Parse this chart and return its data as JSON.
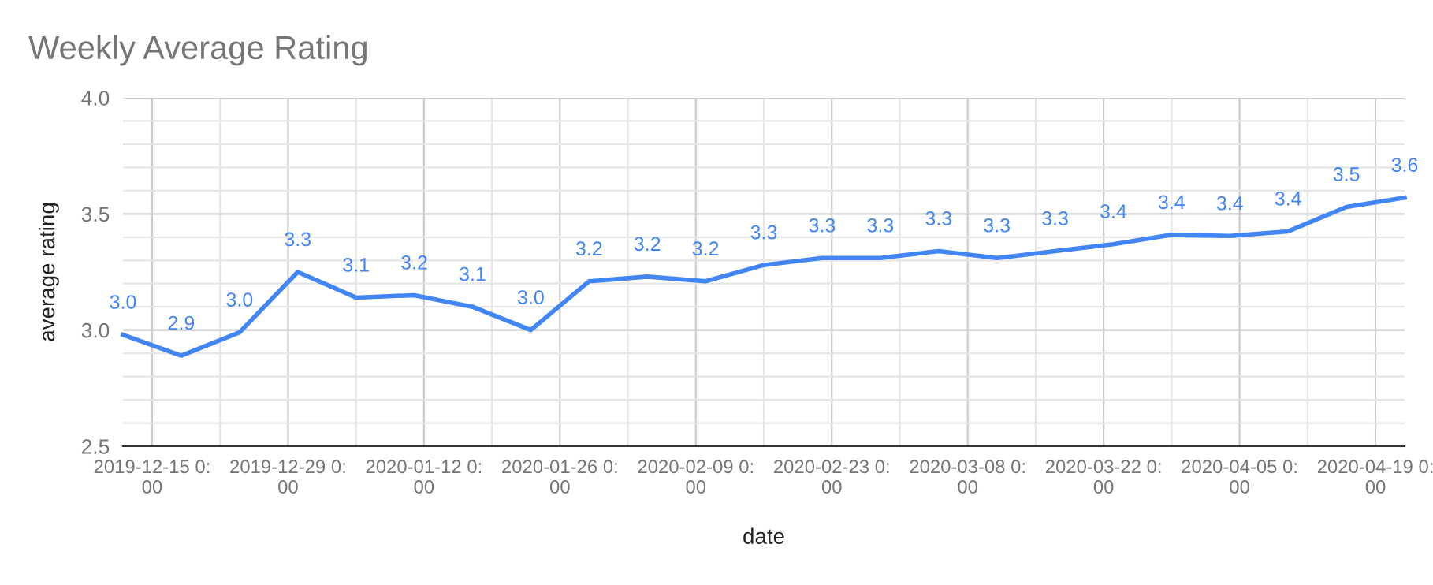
{
  "chart_data": {
    "type": "line",
    "title": "Weekly Average Rating",
    "xlabel": "date",
    "ylabel": "average rating",
    "x": [
      "2019-12-12",
      "2019-12-18",
      "2019-12-24",
      "2019-12-30",
      "2020-01-05",
      "2020-01-11",
      "2020-01-17",
      "2020-01-23",
      "2020-01-29",
      "2020-02-04",
      "2020-02-10",
      "2020-02-16",
      "2020-02-22",
      "2020-02-28",
      "2020-03-05",
      "2020-03-11",
      "2020-03-17",
      "2020-03-23",
      "2020-03-29",
      "2020-04-04",
      "2020-04-10",
      "2020-04-16",
      "2020-04-22"
    ],
    "series": [
      {
        "color": "#4285f4",
        "values": [
          2.98,
          2.89,
          2.99,
          3.25,
          3.14,
          3.15,
          3.1,
          3.0,
          3.21,
          3.23,
          3.21,
          3.28,
          3.31,
          3.31,
          3.34,
          3.31,
          3.34,
          3.37,
          3.41,
          3.405,
          3.425,
          3.53,
          3.57
        ],
        "value_labels": [
          "3.0",
          "2.9",
          "3.0",
          "3.3",
          "3.1",
          "3.2",
          "3.1",
          "3.0",
          "3.2",
          "3.2",
          "3.2",
          "3.3",
          "3.3",
          "3.3",
          "3.3",
          "3.3",
          "3.3",
          "3.4",
          "3.4",
          "3.4",
          "3.4",
          "3.5",
          "3.6"
        ]
      }
    ],
    "xlim": [
      "2019-12-12",
      "2020-04-22"
    ],
    "xticks": [
      {
        "value": "2019-12-15",
        "label": "2019-12-15 0:\n00"
      },
      {
        "value": "2019-12-22",
        "label": null
      },
      {
        "value": "2019-12-29",
        "label": "2019-12-29 0:\n00"
      },
      {
        "value": "2020-01-05",
        "label": null
      },
      {
        "value": "2020-01-12",
        "label": "2020-01-12 0:\n00"
      },
      {
        "value": "2020-01-19",
        "label": null
      },
      {
        "value": "2020-01-26",
        "label": "2020-01-26 0:\n00"
      },
      {
        "value": "2020-02-02",
        "label": null
      },
      {
        "value": "2020-02-09",
        "label": "2020-02-09 0:\n00"
      },
      {
        "value": "2020-02-16",
        "label": null
      },
      {
        "value": "2020-02-23",
        "label": "2020-02-23 0:\n00"
      },
      {
        "value": "2020-03-01",
        "label": null
      },
      {
        "value": "2020-03-08",
        "label": "2020-03-08 0:\n00"
      },
      {
        "value": "2020-03-15",
        "label": null
      },
      {
        "value": "2020-03-22",
        "label": "2020-03-22 0:\n00"
      },
      {
        "value": "2020-03-29",
        "label": null
      },
      {
        "value": "2020-04-05",
        "label": "2020-04-05 0:\n00"
      },
      {
        "value": "2020-04-12",
        "label": null
      },
      {
        "value": "2020-04-19",
        "label": "2020-04-19 0:\n00"
      }
    ],
    "ylim": [
      2.5,
      4.0
    ],
    "yticks": [
      {
        "value": 2.5,
        "label": "2.5"
      },
      {
        "value": 2.6,
        "label": null
      },
      {
        "value": 2.7,
        "label": null
      },
      {
        "value": 2.8,
        "label": null
      },
      {
        "value": 2.9,
        "label": null
      },
      {
        "value": 3.0,
        "label": "3.0"
      },
      {
        "value": 3.1,
        "label": null
      },
      {
        "value": 3.2,
        "label": null
      },
      {
        "value": 3.3,
        "label": null
      },
      {
        "value": 3.4,
        "label": null
      },
      {
        "value": 3.5,
        "label": "3.5"
      },
      {
        "value": 3.6,
        "label": null
      },
      {
        "value": 3.7,
        "label": null
      },
      {
        "value": 3.8,
        "label": null
      },
      {
        "value": 3.9,
        "label": null
      },
      {
        "value": 4.0,
        "label": "4.0"
      }
    ],
    "grid": true,
    "marker": "none",
    "line_style": "solid"
  }
}
